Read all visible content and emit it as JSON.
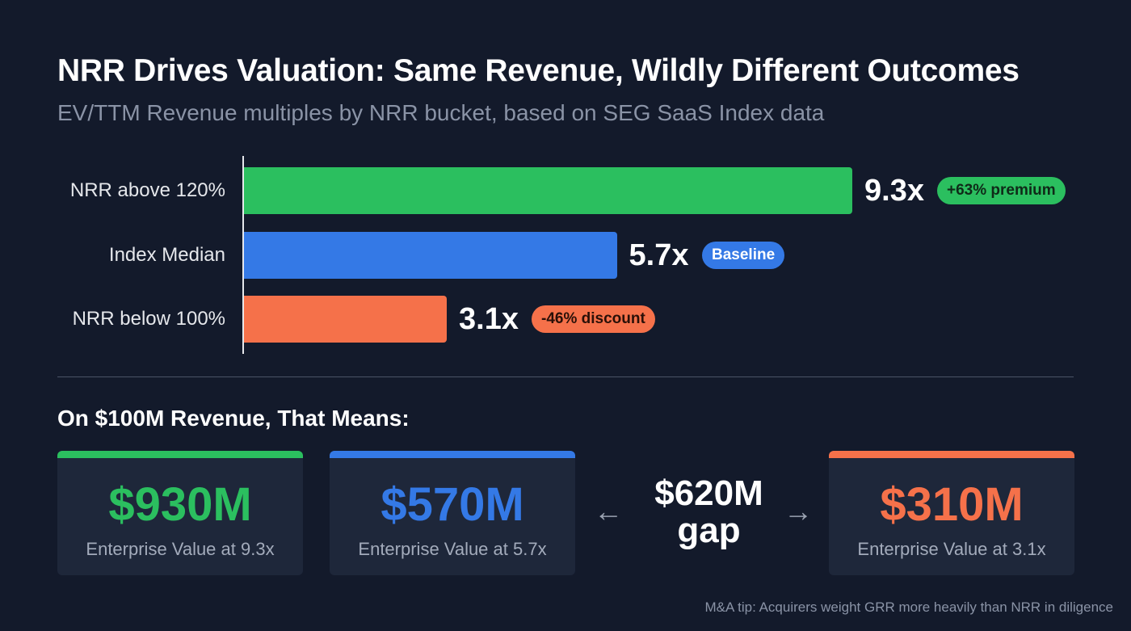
{
  "title": "NRR Drives Valuation: Same Revenue, Wildly Different Outcomes",
  "subtitle": "EV/TTM Revenue multiples by NRR bucket, based on SEG SaaS Index data",
  "chart_data": {
    "type": "bar",
    "orientation": "horizontal",
    "categories": [
      "NRR above 120%",
      "Index Median",
      "NRR below 100%"
    ],
    "values": [
      9.3,
      5.7,
      3.1
    ],
    "value_labels": [
      "9.3x",
      "5.7x",
      "3.1x"
    ],
    "badges": [
      "+63% premium",
      "Baseline",
      "-46% discount"
    ],
    "colors": [
      "#2bbf5f",
      "#3479e6",
      "#f5714a"
    ],
    "xlim": [
      0,
      9.3
    ]
  },
  "section_title": "On $100M Revenue, That Means:",
  "cards": [
    {
      "amount": "$930M",
      "desc": "Enterprise Value at 9.3x",
      "color": "#2bbf5f"
    },
    {
      "amount": "$570M",
      "desc": "Enterprise Value at 5.7x",
      "color": "#3479e6"
    },
    {
      "amount": "$310M",
      "desc": "Enterprise Value at 3.1x",
      "color": "#f5714a"
    }
  ],
  "gap": {
    "amount": "$620M",
    "label": "gap",
    "left_arrow": "←",
    "right_arrow": "→"
  },
  "tip": "M&A tip: Acquirers weight GRR more heavily than NRR in diligence"
}
